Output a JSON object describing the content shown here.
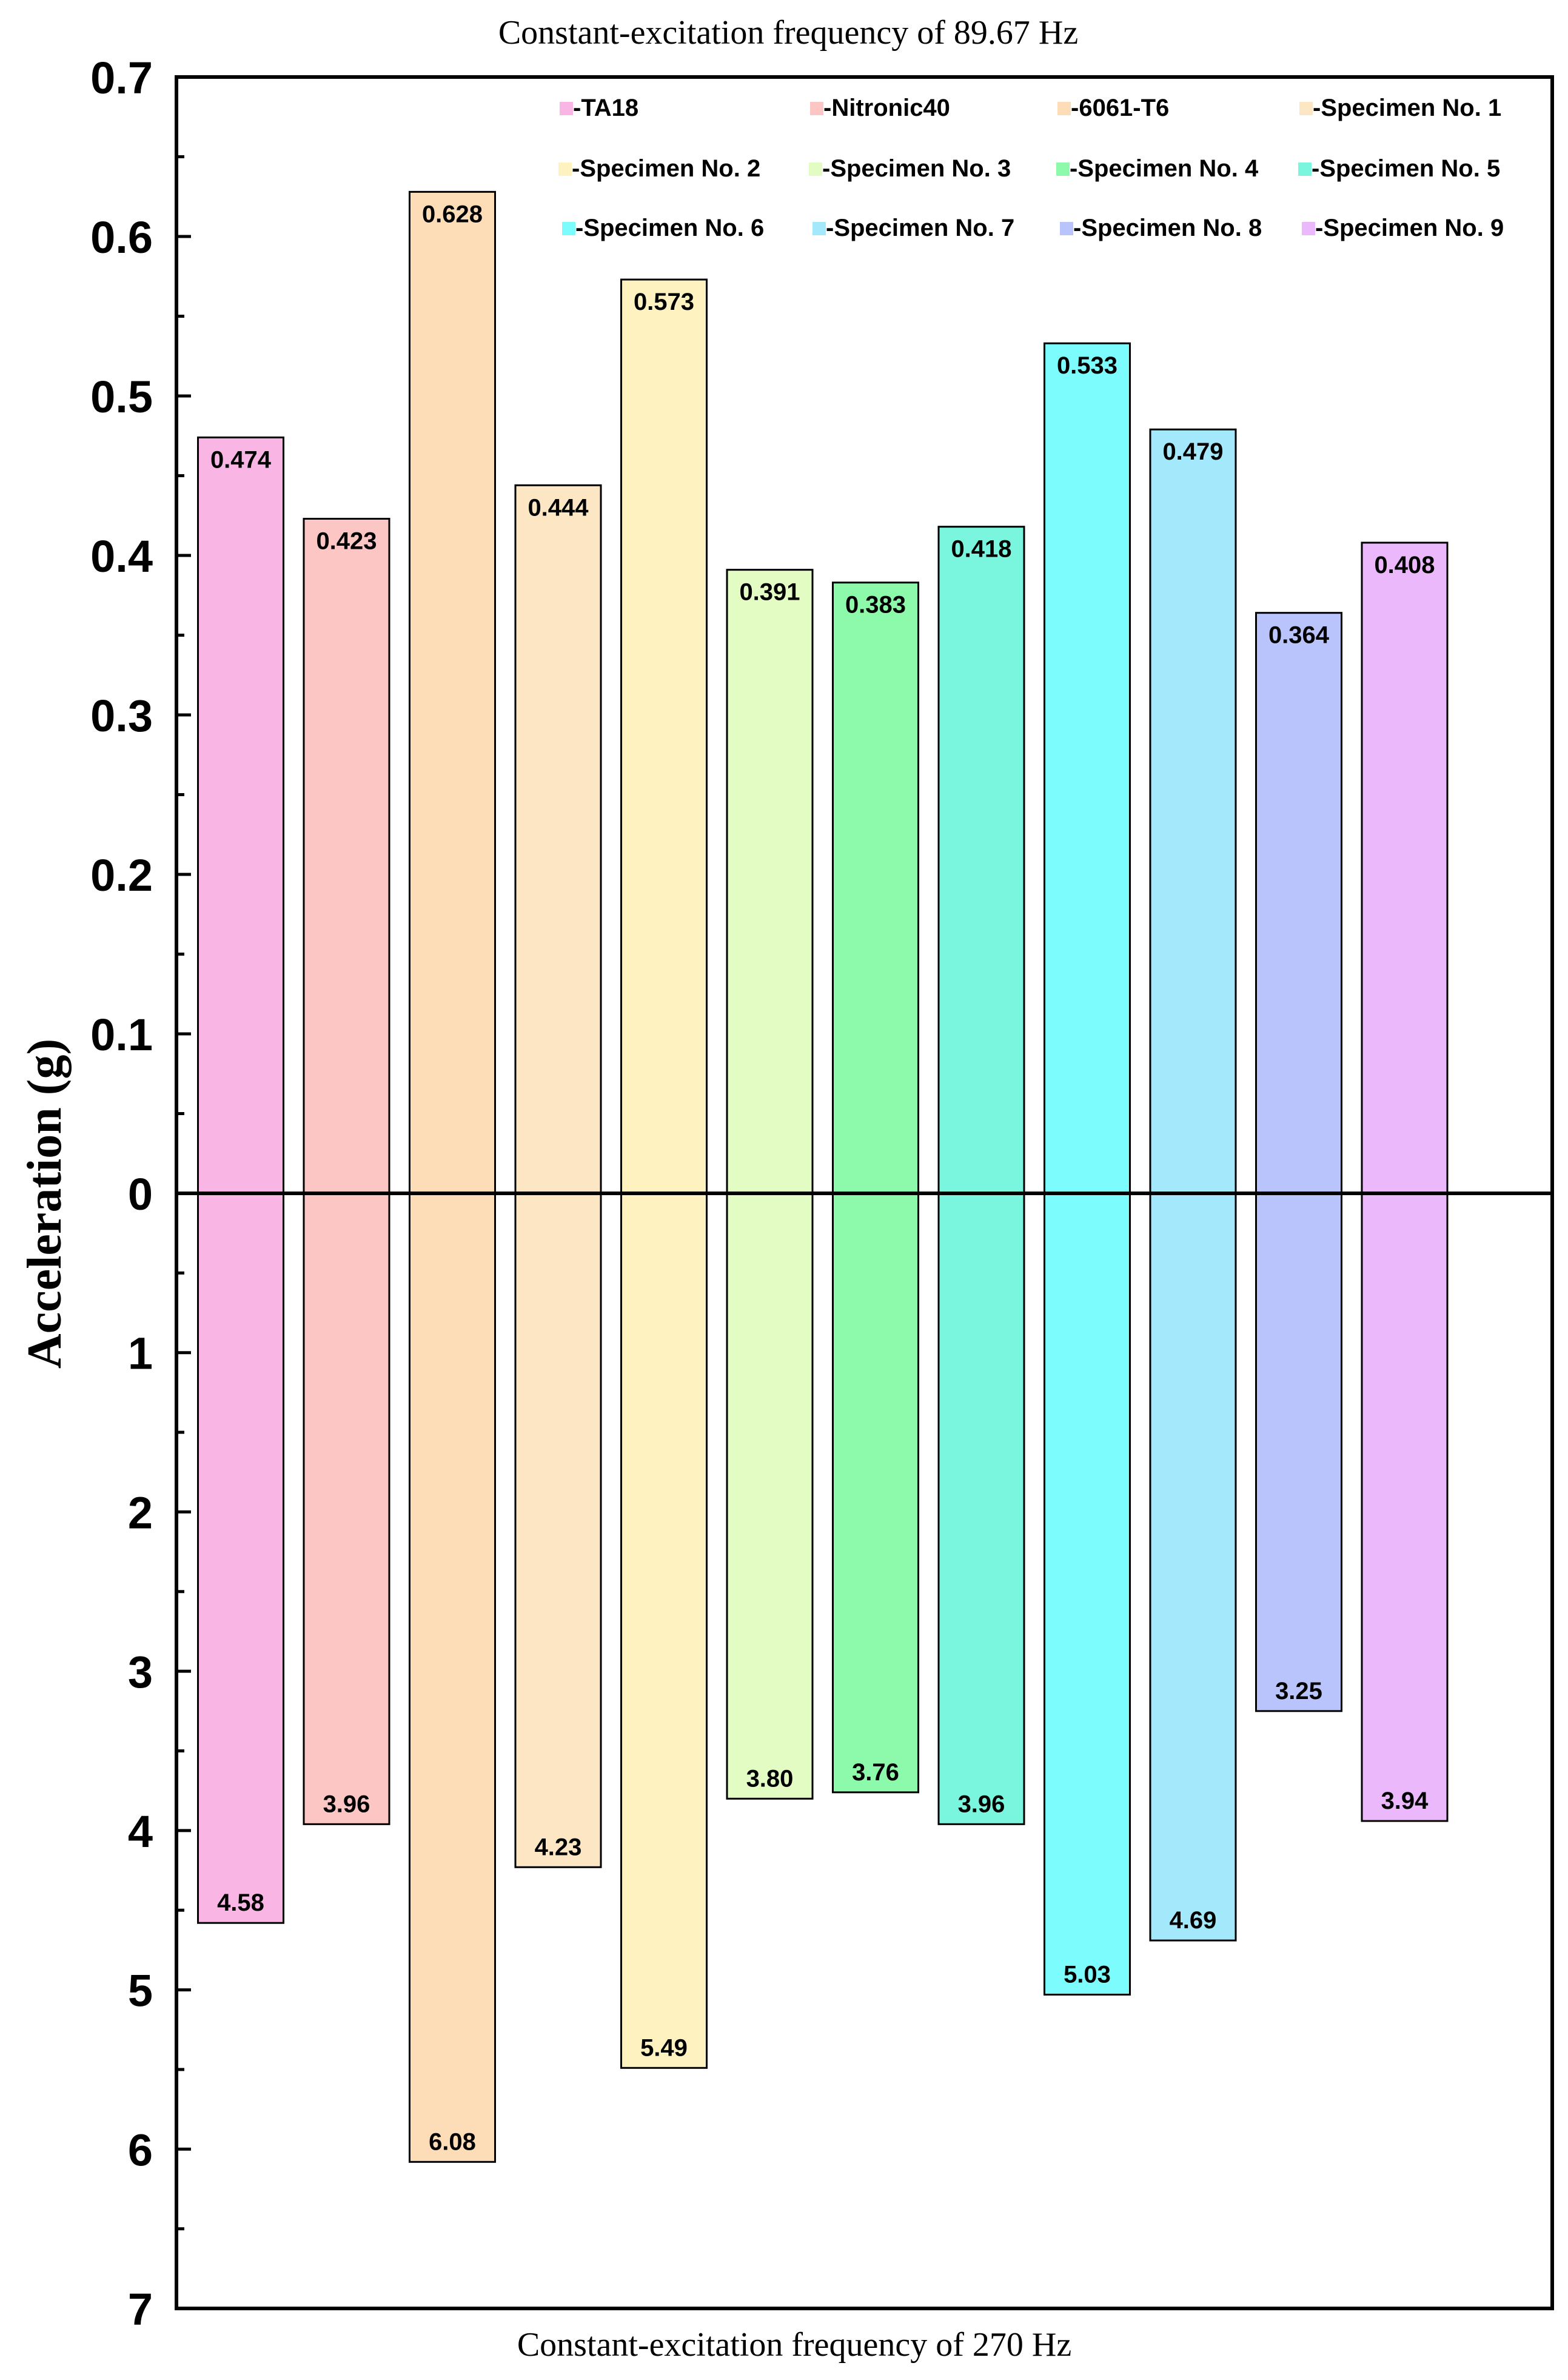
{
  "chart_data": {
    "type": "bar",
    "title_top": "Constant-excitation frequency of 89.67 Hz",
    "title_bottom": "Constant-excitation frequency of 270 Hz",
    "ylabel": "Acceleration (g)",
    "upper_axis": {
      "range": [
        0,
        0.7
      ],
      "ticks": [
        "0",
        "0.1",
        "0.2",
        "0.3",
        "0.4",
        "0.5",
        "0.6",
        "0.7"
      ]
    },
    "lower_axis": {
      "range": [
        0,
        7
      ],
      "ticks": [
        "1",
        "2",
        "3",
        "4",
        "5",
        "6",
        "7"
      ]
    },
    "categories": [
      "TA18",
      "Nitronic40",
      "6061-T6",
      "Specimen No. 1",
      "Specimen No. 2",
      "Specimen No. 3",
      "Specimen No. 4",
      "Specimen No. 5",
      "Specimen No. 6",
      "Specimen No. 7",
      "Specimen No. 8",
      "Specimen No. 9"
    ],
    "series": [
      {
        "name": "Constant-excitation frequency of 89.67 Hz",
        "values": [
          0.474,
          0.423,
          0.628,
          0.444,
          0.573,
          0.391,
          0.383,
          0.418,
          0.533,
          0.479,
          0.364,
          0.408
        ],
        "labels": [
          "0.474",
          "0.423",
          "0.628",
          "0.444",
          "0.573",
          "0.391",
          "0.383",
          "0.418",
          "0.533",
          "0.479",
          "0.364",
          "0.408"
        ]
      },
      {
        "name": "Constant-excitation frequency of 270 Hz",
        "values": [
          4.58,
          3.96,
          6.08,
          4.23,
          5.49,
          3.8,
          3.76,
          3.96,
          5.03,
          4.69,
          3.25,
          3.94
        ],
        "labels": [
          "4.58",
          "3.96",
          "6.08",
          "4.23",
          "5.49",
          "3.80",
          "3.76",
          "3.96",
          "5.03",
          "4.69",
          "3.25",
          "3.94"
        ]
      }
    ],
    "colors": [
      "#f9b6e4",
      "#fcc6c4",
      "#fddcb8",
      "#fde6c4",
      "#fdf2c0",
      "#e2fcc4",
      "#8cfaaa",
      "#7af6de",
      "#7cfcfc",
      "#a4e8fc",
      "#bac4fc",
      "#ecb8fc"
    ],
    "legend": {
      "position": "top-right",
      "labels": [
        "-TA18",
        "-Nitronic40",
        "-6061-T6",
        "-Specimen No. 1",
        "-Specimen No. 2",
        "-Specimen No. 3",
        "-Specimen No. 4",
        "-Specimen No. 5",
        "-Specimen No. 6",
        "-Specimen No. 7",
        "-Specimen No. 8",
        "-Specimen No. 9"
      ]
    }
  }
}
